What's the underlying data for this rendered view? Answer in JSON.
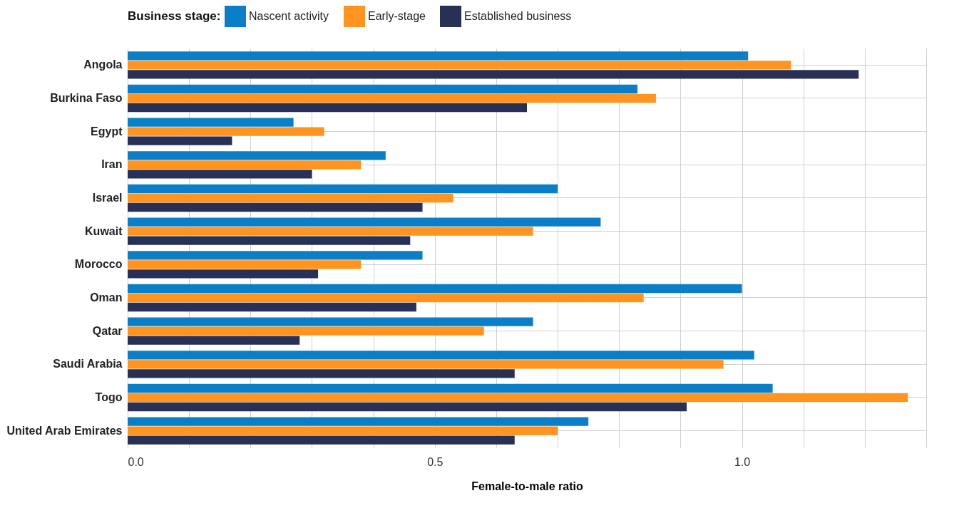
{
  "chart_data": {
    "type": "bar",
    "orientation": "horizontal",
    "xlabel": "Female-to-male ratio",
    "legend_title": "Business stage:",
    "legend": "top",
    "grid": true,
    "categories": [
      "Angola",
      "Burkina Faso",
      "Egypt",
      "Iran",
      "Israel",
      "Kuwait",
      "Morocco",
      "Oman",
      "Qatar",
      "Saudi Arabia",
      "Togo",
      "United Arab Emirates"
    ],
    "xlim": [
      0,
      1.3
    ],
    "xticks": [
      {
        "value": 0,
        "label": "0.0"
      },
      {
        "value": 0.1,
        "label": null
      },
      {
        "value": 0.2,
        "label": null
      },
      {
        "value": 0.3,
        "label": null
      },
      {
        "value": 0.4,
        "label": null
      },
      {
        "value": 0.5,
        "label": "0.5"
      },
      {
        "value": 0.6,
        "label": null
      },
      {
        "value": 0.7,
        "label": null
      },
      {
        "value": 0.8,
        "label": null
      },
      {
        "value": 0.9,
        "label": null
      },
      {
        "value": 1,
        "label": "1.0"
      },
      {
        "value": 1.1,
        "label": null
      },
      {
        "value": 1.2,
        "label": null
      },
      {
        "value": 1.3,
        "label": null
      }
    ],
    "series": [
      {
        "name": "Nascent activity",
        "color": "#0a7fc7",
        "values": [
          1.01,
          0.83,
          0.27,
          0.42,
          0.7,
          0.77,
          0.48,
          1.0,
          0.66,
          1.02,
          1.05,
          0.75
        ]
      },
      {
        "name": "Early-stage",
        "color": "#ff9420",
        "values": [
          1.08,
          0.86,
          0.32,
          0.38,
          0.53,
          0.66,
          0.38,
          0.84,
          0.58,
          0.97,
          1.27,
          0.7
        ]
      },
      {
        "name": "Established business",
        "color": "#283056",
        "values": [
          1.19,
          0.65,
          0.17,
          0.3,
          0.48,
          0.46,
          0.31,
          0.47,
          0.28,
          0.63,
          0.91,
          0.63
        ]
      }
    ]
  }
}
